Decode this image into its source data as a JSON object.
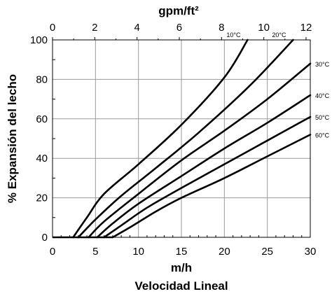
{
  "chart_data": {
    "type": "line",
    "ylabel": "% Expansión del lecho",
    "xlabel_bottom": "m/h",
    "xlabel_caption": "Velocidad Lineal",
    "xlabel_top": "gpm/ft²",
    "x_bottom_range": [
      0,
      30
    ],
    "x_bottom_ticks": [
      "0",
      "5",
      "10",
      "15",
      "20",
      "25",
      "30"
    ],
    "x_top_range": [
      0,
      12.2
    ],
    "x_top_ticks": [
      "0",
      "2",
      "4",
      "6",
      "8",
      "10",
      "12"
    ],
    "ylim": [
      0,
      100
    ],
    "y_ticks": [
      "0",
      "20",
      "40",
      "60",
      "80",
      "100"
    ],
    "grid": true,
    "series": [
      {
        "name": "10°C",
        "points": [
          [
            2.4,
            0
          ],
          [
            4,
            10
          ],
          [
            6,
            22
          ],
          [
            10,
            37
          ],
          [
            15,
            57
          ],
          [
            20,
            81
          ],
          [
            22.7,
            100
          ]
        ]
      },
      {
        "name": "20°C",
        "points": [
          [
            3.0,
            0
          ],
          [
            5,
            9
          ],
          [
            8,
            21
          ],
          [
            12,
            35
          ],
          [
            17,
            53
          ],
          [
            23,
            77
          ],
          [
            28,
            100
          ]
        ]
      },
      {
        "name": "30°C",
        "points": [
          [
            4.2,
            0
          ],
          [
            6,
            8
          ],
          [
            10,
            22
          ],
          [
            15,
            39
          ],
          [
            20,
            54
          ],
          [
            25,
            70
          ],
          [
            30,
            88
          ]
        ]
      },
      {
        "name": "40°C",
        "points": [
          [
            5.2,
            0
          ],
          [
            7,
            7
          ],
          [
            10,
            17
          ],
          [
            15,
            31
          ],
          [
            20,
            45
          ],
          [
            25,
            58
          ],
          [
            30,
            72
          ]
        ]
      },
      {
        "name": "50°C",
        "points": [
          [
            6.0,
            0
          ],
          [
            8,
            6
          ],
          [
            11,
            15
          ],
          [
            15,
            25
          ],
          [
            20,
            37
          ],
          [
            25,
            49
          ],
          [
            30,
            61
          ]
        ]
      },
      {
        "name": "60°C",
        "points": [
          [
            7.0,
            0
          ],
          [
            9,
            5
          ],
          [
            12,
            13
          ],
          [
            15,
            20
          ],
          [
            20,
            30
          ],
          [
            25,
            41
          ],
          [
            30,
            52
          ]
        ]
      }
    ]
  }
}
